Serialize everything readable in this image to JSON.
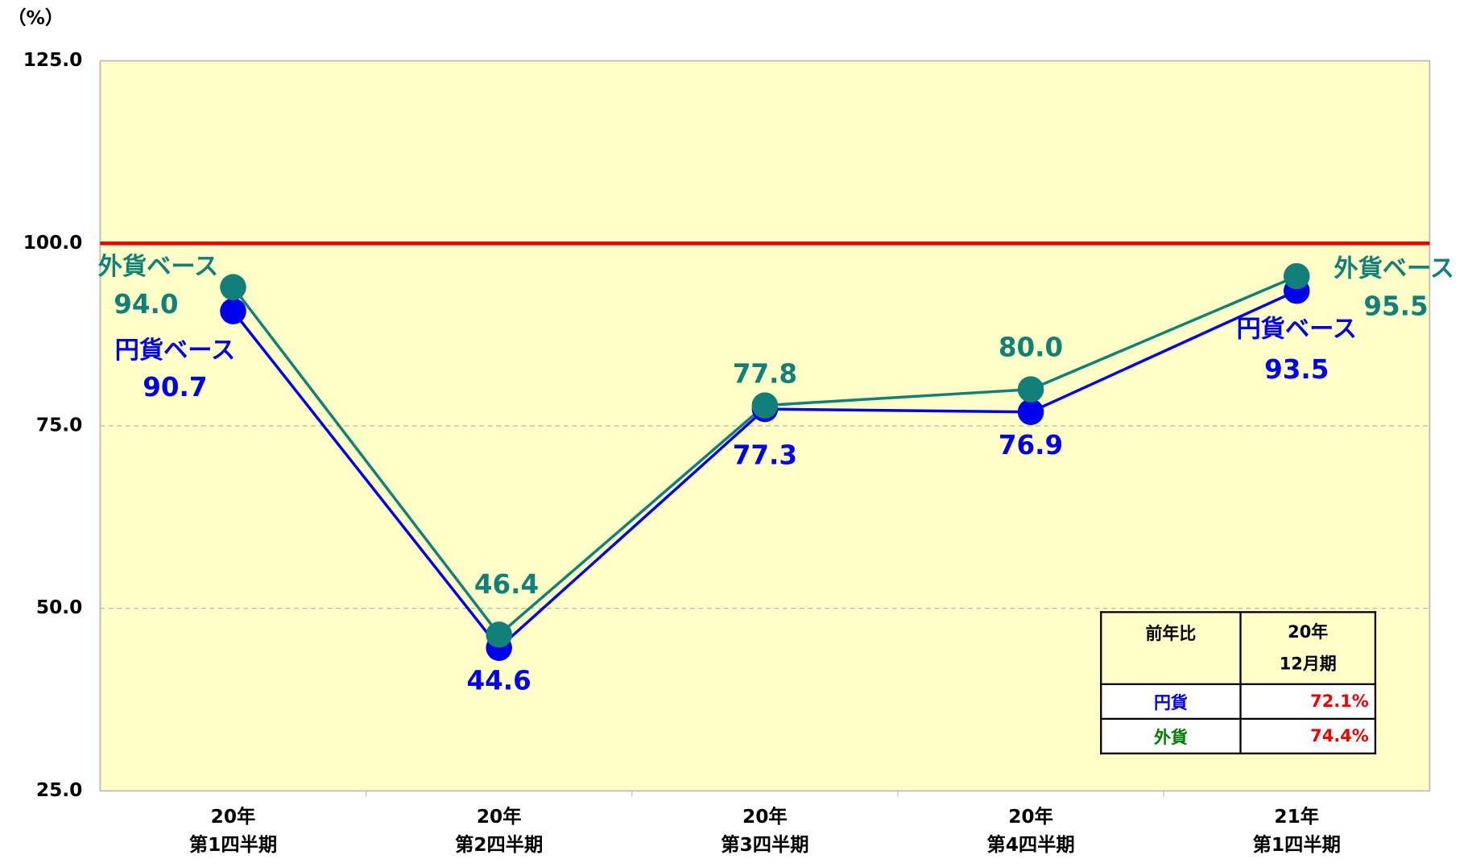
{
  "chart_data": {
    "type": "line",
    "y_unit": "（%）",
    "categories": [
      "20年\n第1四半期",
      "20年\n第2四半期",
      "20年\n第3四半期",
      "20年\n第4四半期",
      "21年\n第1四半期"
    ],
    "series": [
      {
        "name": "外貨ベース",
        "color": "#12807a",
        "values": [
          94.0,
          46.4,
          77.8,
          80.0,
          95.5
        ],
        "value_labels": [
          "94.0",
          "46.4",
          "77.8",
          "80.0",
          "95.5"
        ]
      },
      {
        "name": "円貨ベース",
        "color": "#0000ee",
        "values": [
          90.7,
          44.6,
          77.3,
          76.9,
          93.5
        ],
        "value_labels": [
          "90.7",
          "44.6",
          "77.3",
          "76.9",
          "93.5"
        ]
      }
    ],
    "ylim": [
      25,
      125
    ],
    "yticks": [
      {
        "value": 25,
        "label": "25.0"
      },
      {
        "value": 50,
        "label": "50.0"
      },
      {
        "value": 75,
        "label": "75.0"
      },
      {
        "value": 100,
        "label": "100.0"
      },
      {
        "value": 125,
        "label": "125.0"
      }
    ],
    "grid": true,
    "reference_line": {
      "value": 100,
      "color": "#ee0000"
    },
    "table": {
      "header": [
        "前年比",
        "20年\n12月期"
      ],
      "rows": [
        [
          "円貨",
          "72.1%"
        ],
        [
          "外貨",
          "74.4%"
        ]
      ]
    }
  }
}
